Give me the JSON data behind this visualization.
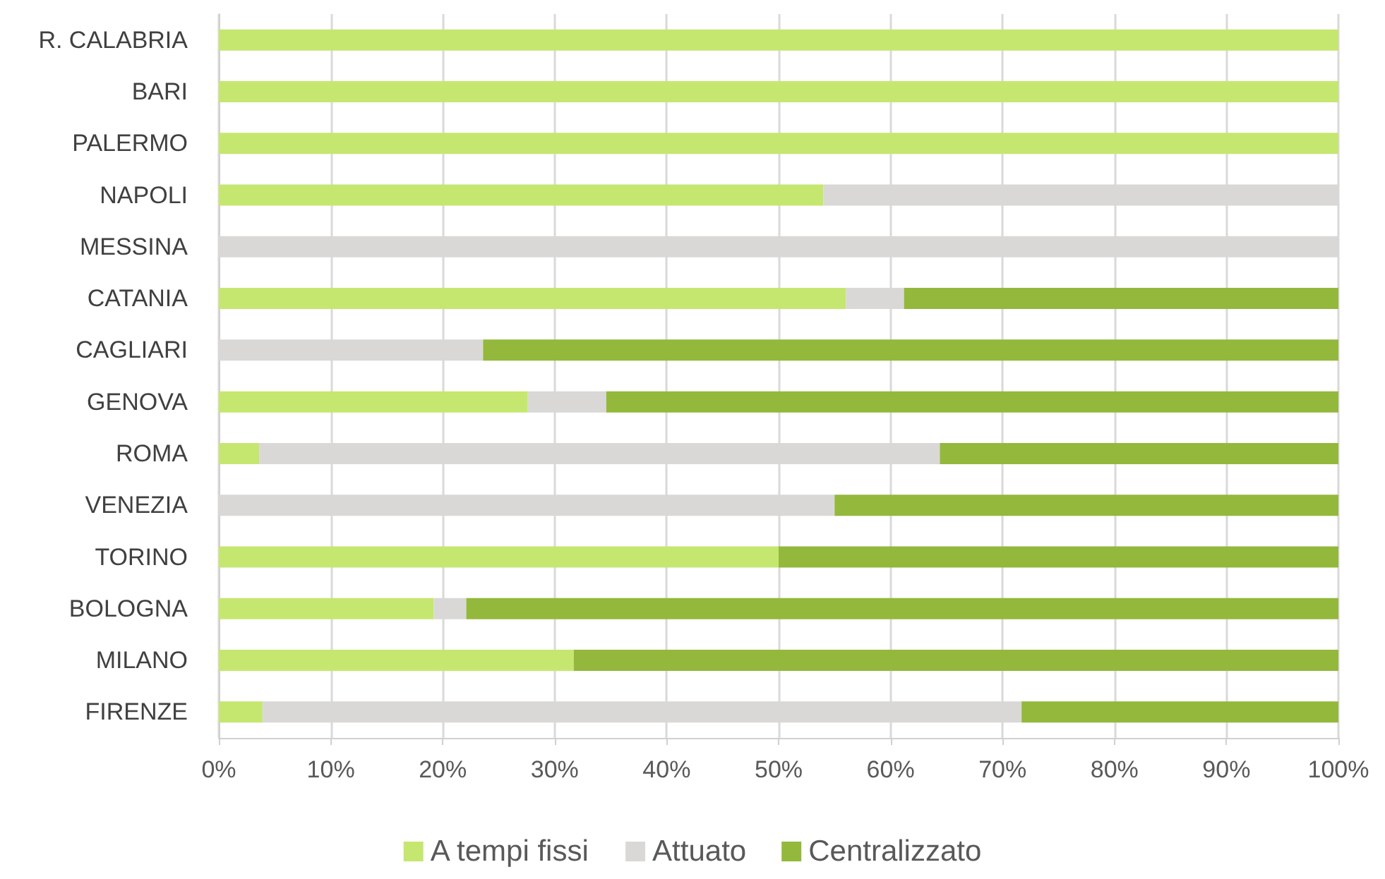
{
  "chart_data": {
    "type": "bar",
    "orientation": "horizontal",
    "stacked": true,
    "categories": [
      "R. CALABRIA",
      "BARI",
      "PALERMO",
      "NAPOLI",
      "MESSINA",
      "CATANIA",
      "CAGLIARI",
      "GENOVA",
      "ROMA",
      "VENEZIA",
      "TORINO",
      "BOLOGNA",
      "MILANO",
      "FIRENZE"
    ],
    "series": [
      {
        "name": "A tempi fissi",
        "color": "#c5e76f",
        "values": [
          100,
          100,
          100,
          54,
          0,
          56,
          0,
          27.6,
          3.6,
          0,
          50,
          19.2,
          31.7,
          3.9
        ]
      },
      {
        "name": "Attuato",
        "color": "#d9d8d6",
        "values": [
          0,
          0,
          0,
          46,
          100,
          5.2,
          23.6,
          7,
          60.8,
          55,
          0,
          2.9,
          0,
          67.8
        ]
      },
      {
        "name": "Centralizzato",
        "color": "#93b83c",
        "values": [
          0,
          0,
          0,
          0,
          0,
          38.8,
          76.4,
          65.4,
          35.6,
          45,
          50,
          77.9,
          68.3,
          28.3
        ]
      }
    ],
    "xlim": [
      0,
      100
    ],
    "xticks": [
      {
        "value": 0,
        "label": "0%"
      },
      {
        "value": 10,
        "label": "10%"
      },
      {
        "value": 20,
        "label": "20%"
      },
      {
        "value": 30,
        "label": "30%"
      },
      {
        "value": 40,
        "label": "40%"
      },
      {
        "value": 50,
        "label": "50%"
      },
      {
        "value": 60,
        "label": "60%"
      },
      {
        "value": 70,
        "label": "70%"
      },
      {
        "value": 80,
        "label": "80%"
      },
      {
        "value": 90,
        "label": "90%"
      },
      {
        "value": 100,
        "label": "100%"
      }
    ],
    "grid": "x",
    "legend": "bottom"
  }
}
